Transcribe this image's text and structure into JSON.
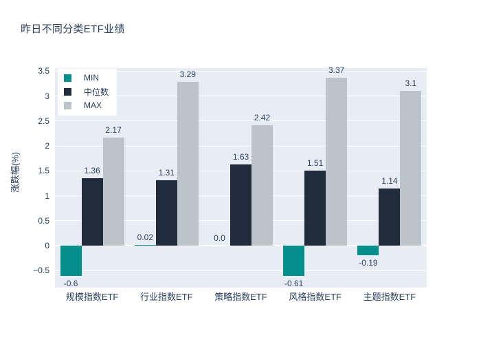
{
  "chart_data": {
    "type": "bar",
    "title": "昨日不同分类ETF业绩",
    "ylabel": "涨跌幅(%)",
    "categories": [
      "规模指数ETF",
      "行业指数ETF",
      "策略指数ETF",
      "风格指数ETF",
      "主题指数ETF"
    ],
    "series": [
      {
        "name": "MIN",
        "color": "#048f8d",
        "values": [
          -0.6,
          0.02,
          0.0,
          -0.61,
          -0.19
        ],
        "labels": [
          "-0.6",
          "0.02",
          "0.0",
          "-0.61",
          "-0.19"
        ]
      },
      {
        "name": "中位数",
        "color": "#202b3c",
        "values": [
          1.36,
          1.31,
          1.63,
          1.51,
          1.14
        ],
        "labels": [
          "1.36",
          "1.31",
          "1.63",
          "1.51",
          "1.14"
        ]
      },
      {
        "name": "MAX",
        "color": "#bdc3ca",
        "values": [
          2.17,
          3.29,
          2.42,
          3.37,
          3.1
        ],
        "labels": [
          "2.17",
          "3.29",
          "2.42",
          "3.37",
          "3.1"
        ]
      }
    ],
    "yticks": [
      {
        "value": 3.5,
        "label": "3.5"
      },
      {
        "value": 3,
        "label": "3"
      },
      {
        "value": 2.5,
        "label": "2.5"
      },
      {
        "value": 2,
        "label": "2"
      },
      {
        "value": 1.5,
        "label": "1.5"
      },
      {
        "value": 1,
        "label": "1"
      },
      {
        "value": 0.5,
        "label": "0.5"
      },
      {
        "value": 0,
        "label": "0"
      },
      {
        "value": -0.5,
        "label": "−0.5"
      }
    ],
    "ylim": [
      -0.84,
      3.56
    ],
    "grid": true,
    "legend_position": "top-left",
    "colors": {
      "plot_bg": "#e8ecf5",
      "grid": "#ffffff",
      "zeroline": "#ffffff",
      "text": "#2a3f5f",
      "title": "#2a3f5f",
      "legend_bg": "#ffffff"
    }
  }
}
